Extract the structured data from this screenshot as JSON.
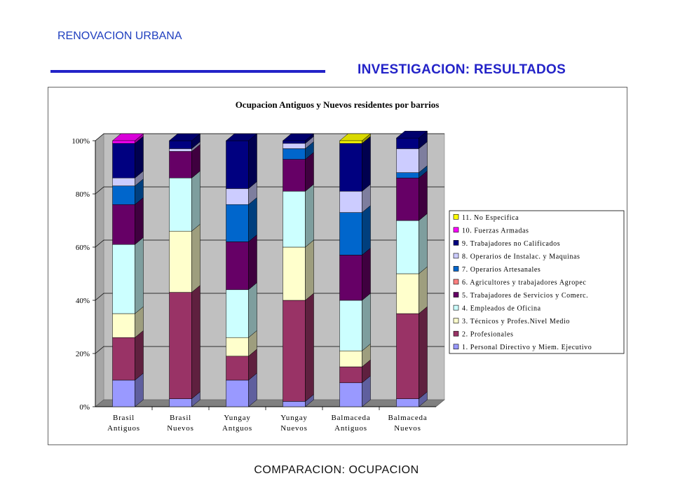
{
  "header": {
    "left_title": "RENOVACION URBANA",
    "right_title": "INVESTIGACION: RESULTADOS"
  },
  "footer": {
    "caption": "COMPARACION: OCUPACION"
  },
  "chart_data": {
    "type": "bar",
    "stacked": true,
    "percent": true,
    "three_d": true,
    "title": "Ocupacion Antiguos y Nuevos residentes por barrios",
    "xlabel": "",
    "ylabel": "",
    "ylim": [
      0,
      100
    ],
    "yticks": [
      "0%",
      "20%",
      "40%",
      "60%",
      "80%",
      "100%"
    ],
    "grid": true,
    "legend_position": "right",
    "categories": [
      [
        "Brasil",
        "Antiguos"
      ],
      [
        "Brasil",
        "Nuevos"
      ],
      [
        "Yungay",
        "Antguos"
      ],
      [
        "Yungay",
        "Nuevos"
      ],
      [
        "Balmaceda",
        "Antiguos"
      ],
      [
        "Balmaceda",
        "Nuevos"
      ]
    ],
    "series": [
      {
        "name": "1. Personal Directivo y Miem. Ejecutivo",
        "color": "#9999ff",
        "values": [
          10,
          3,
          10,
          2,
          9,
          3
        ]
      },
      {
        "name": "2. Profesionales",
        "color": "#993366",
        "values": [
          16,
          40,
          9,
          38,
          6,
          32
        ]
      },
      {
        "name": "3. Técnicos y Profes.Nivel Medio",
        "color": "#ffffcc",
        "values": [
          9,
          23,
          7,
          20,
          6,
          15
        ]
      },
      {
        "name": "4. Empleados de Oficina",
        "color": "#ccffff",
        "values": [
          26,
          20,
          18,
          21,
          19,
          20
        ]
      },
      {
        "name": "5. Trabajadores de Servicios y Comerc.",
        "color": "#660066",
        "values": [
          15,
          10,
          18,
          12,
          17,
          16
        ]
      },
      {
        "name": "6. Agricultores y trabajadores Agropec",
        "color": "#ff8080",
        "values": [
          0,
          0,
          0,
          0,
          0,
          0
        ]
      },
      {
        "name": "7. Operarios Artesanales",
        "color": "#0066cc",
        "values": [
          7,
          0,
          14,
          4,
          16,
          2
        ]
      },
      {
        "name": "8. Operarios de Instalac. y Maquinas",
        "color": "#ccccff",
        "values": [
          3,
          1,
          6,
          2,
          8,
          9
        ]
      },
      {
        "name": "9. Trabajadores no Calificados",
        "color": "#000080",
        "values": [
          13,
          3,
          18,
          1,
          18,
          4
        ]
      },
      {
        "name": "10. Fuerzas Armadas",
        "color": "#ff00ff",
        "values": [
          1,
          0,
          0,
          0,
          0,
          0
        ]
      },
      {
        "name": "11. No Especifica",
        "color": "#ffff00",
        "values": [
          0,
          0,
          0,
          0,
          1,
          0
        ]
      }
    ],
    "colors": {
      "back_wall": "#c0c0c0",
      "floor": "#808080",
      "gridline": "#000000"
    }
  }
}
